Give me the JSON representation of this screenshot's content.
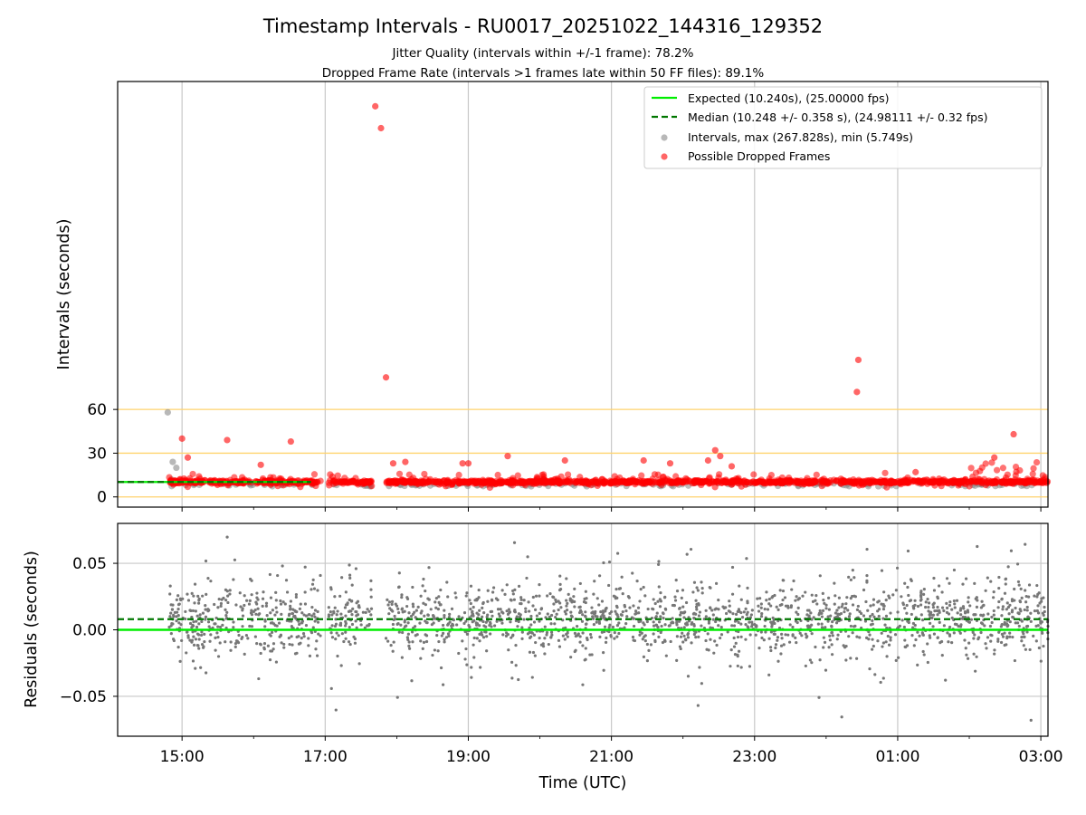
{
  "chart_data": [
    {
      "type": "scatter",
      "title": "Timestamp Intervals - RU0017_20251022_144316_129352",
      "subtitle_lines": [
        "Jitter Quality (intervals within +/-1 frame): 78.2%",
        "Dropped Frame Rate (intervals >1 frames late within 50 FF files): 89.1%"
      ],
      "ylabel": "Intervals (seconds)",
      "xlim_hours": [
        14.1,
        27.1
      ],
      "ylim": [
        -7,
        285
      ],
      "yticks": [
        0,
        30,
        60
      ],
      "ytick_labels": [
        "0",
        "30",
        "60"
      ],
      "hlines_reference": [
        0,
        30,
        60
      ],
      "hline_color": "#ffd36e",
      "expected_interval": 10.24,
      "median_interval": 10.248,
      "legend": {
        "placement": "top-right",
        "entries": [
          {
            "label": "Expected (10.240s), (25.00000 fps)",
            "kind": "line",
            "color": "#00ee00"
          },
          {
            "label": "Median (10.248 +/- 0.358 s), (24.98111 +/- 0.32 fps)",
            "kind": "dashed",
            "color": "#007700"
          },
          {
            "label": "Intervals, max (267.828s), min (5.749s)",
            "kind": "point",
            "color": "#888888"
          },
          {
            "label": "Possible Dropped Frames",
            "kind": "point",
            "color": "#ff0000"
          }
        ]
      },
      "series": [
        {
          "name": "Possible Dropped Frames (notable outliers)",
          "color": "#ff0000",
          "points": [
            [
              17.7,
              268
            ],
            [
              17.78,
              253
            ],
            [
              17.85,
              82
            ],
            [
              24.45,
              94
            ],
            [
              24.43,
              72
            ],
            [
              15.0,
              40
            ],
            [
              15.63,
              39
            ],
            [
              16.52,
              38
            ],
            [
              26.62,
              43
            ],
            [
              22.45,
              32
            ],
            [
              22.52,
              28
            ],
            [
              25.25,
              17
            ],
            [
              15.08,
              27
            ],
            [
              19.55,
              28
            ],
            [
              20.35,
              25
            ],
            [
              21.45,
              25
            ],
            [
              21.82,
              23
            ],
            [
              22.35,
              25
            ],
            [
              22.68,
              21
            ],
            [
              16.1,
              22
            ],
            [
              17.95,
              23
            ],
            [
              18.12,
              24
            ],
            [
              18.92,
              23
            ],
            [
              19.0,
              23
            ],
            [
              26.35,
              27
            ]
          ]
        },
        {
          "name": "Intervals (notable)",
          "color": "#888888",
          "points": [
            [
              14.8,
              58
            ],
            [
              14.87,
              24
            ],
            [
              14.92,
              20
            ],
            [
              14.85,
              12
            ]
          ]
        }
      ]
    },
    {
      "type": "scatter",
      "ylabel": "Residuals (seconds)",
      "xlabel": "Time (UTC)",
      "xlim_hours": [
        14.1,
        27.1
      ],
      "ylim": [
        -0.08,
        0.08
      ],
      "yticks": [
        -0.05,
        0.0,
        0.05
      ],
      "ytick_labels": [
        "−0.05",
        "0.00",
        "0.05"
      ],
      "xticks_hours": [
        15,
        17,
        19,
        21,
        23,
        25,
        27
      ],
      "xtick_labels": [
        "15:00",
        "17:00",
        "19:00",
        "21:00",
        "23:00",
        "01:00",
        "03:00"
      ],
      "expected_residual": 0.0,
      "median_residual": 0.008,
      "series": [
        {
          "name": "Residuals",
          "color": "#777777",
          "spread_std": 0.017
        }
      ]
    }
  ]
}
